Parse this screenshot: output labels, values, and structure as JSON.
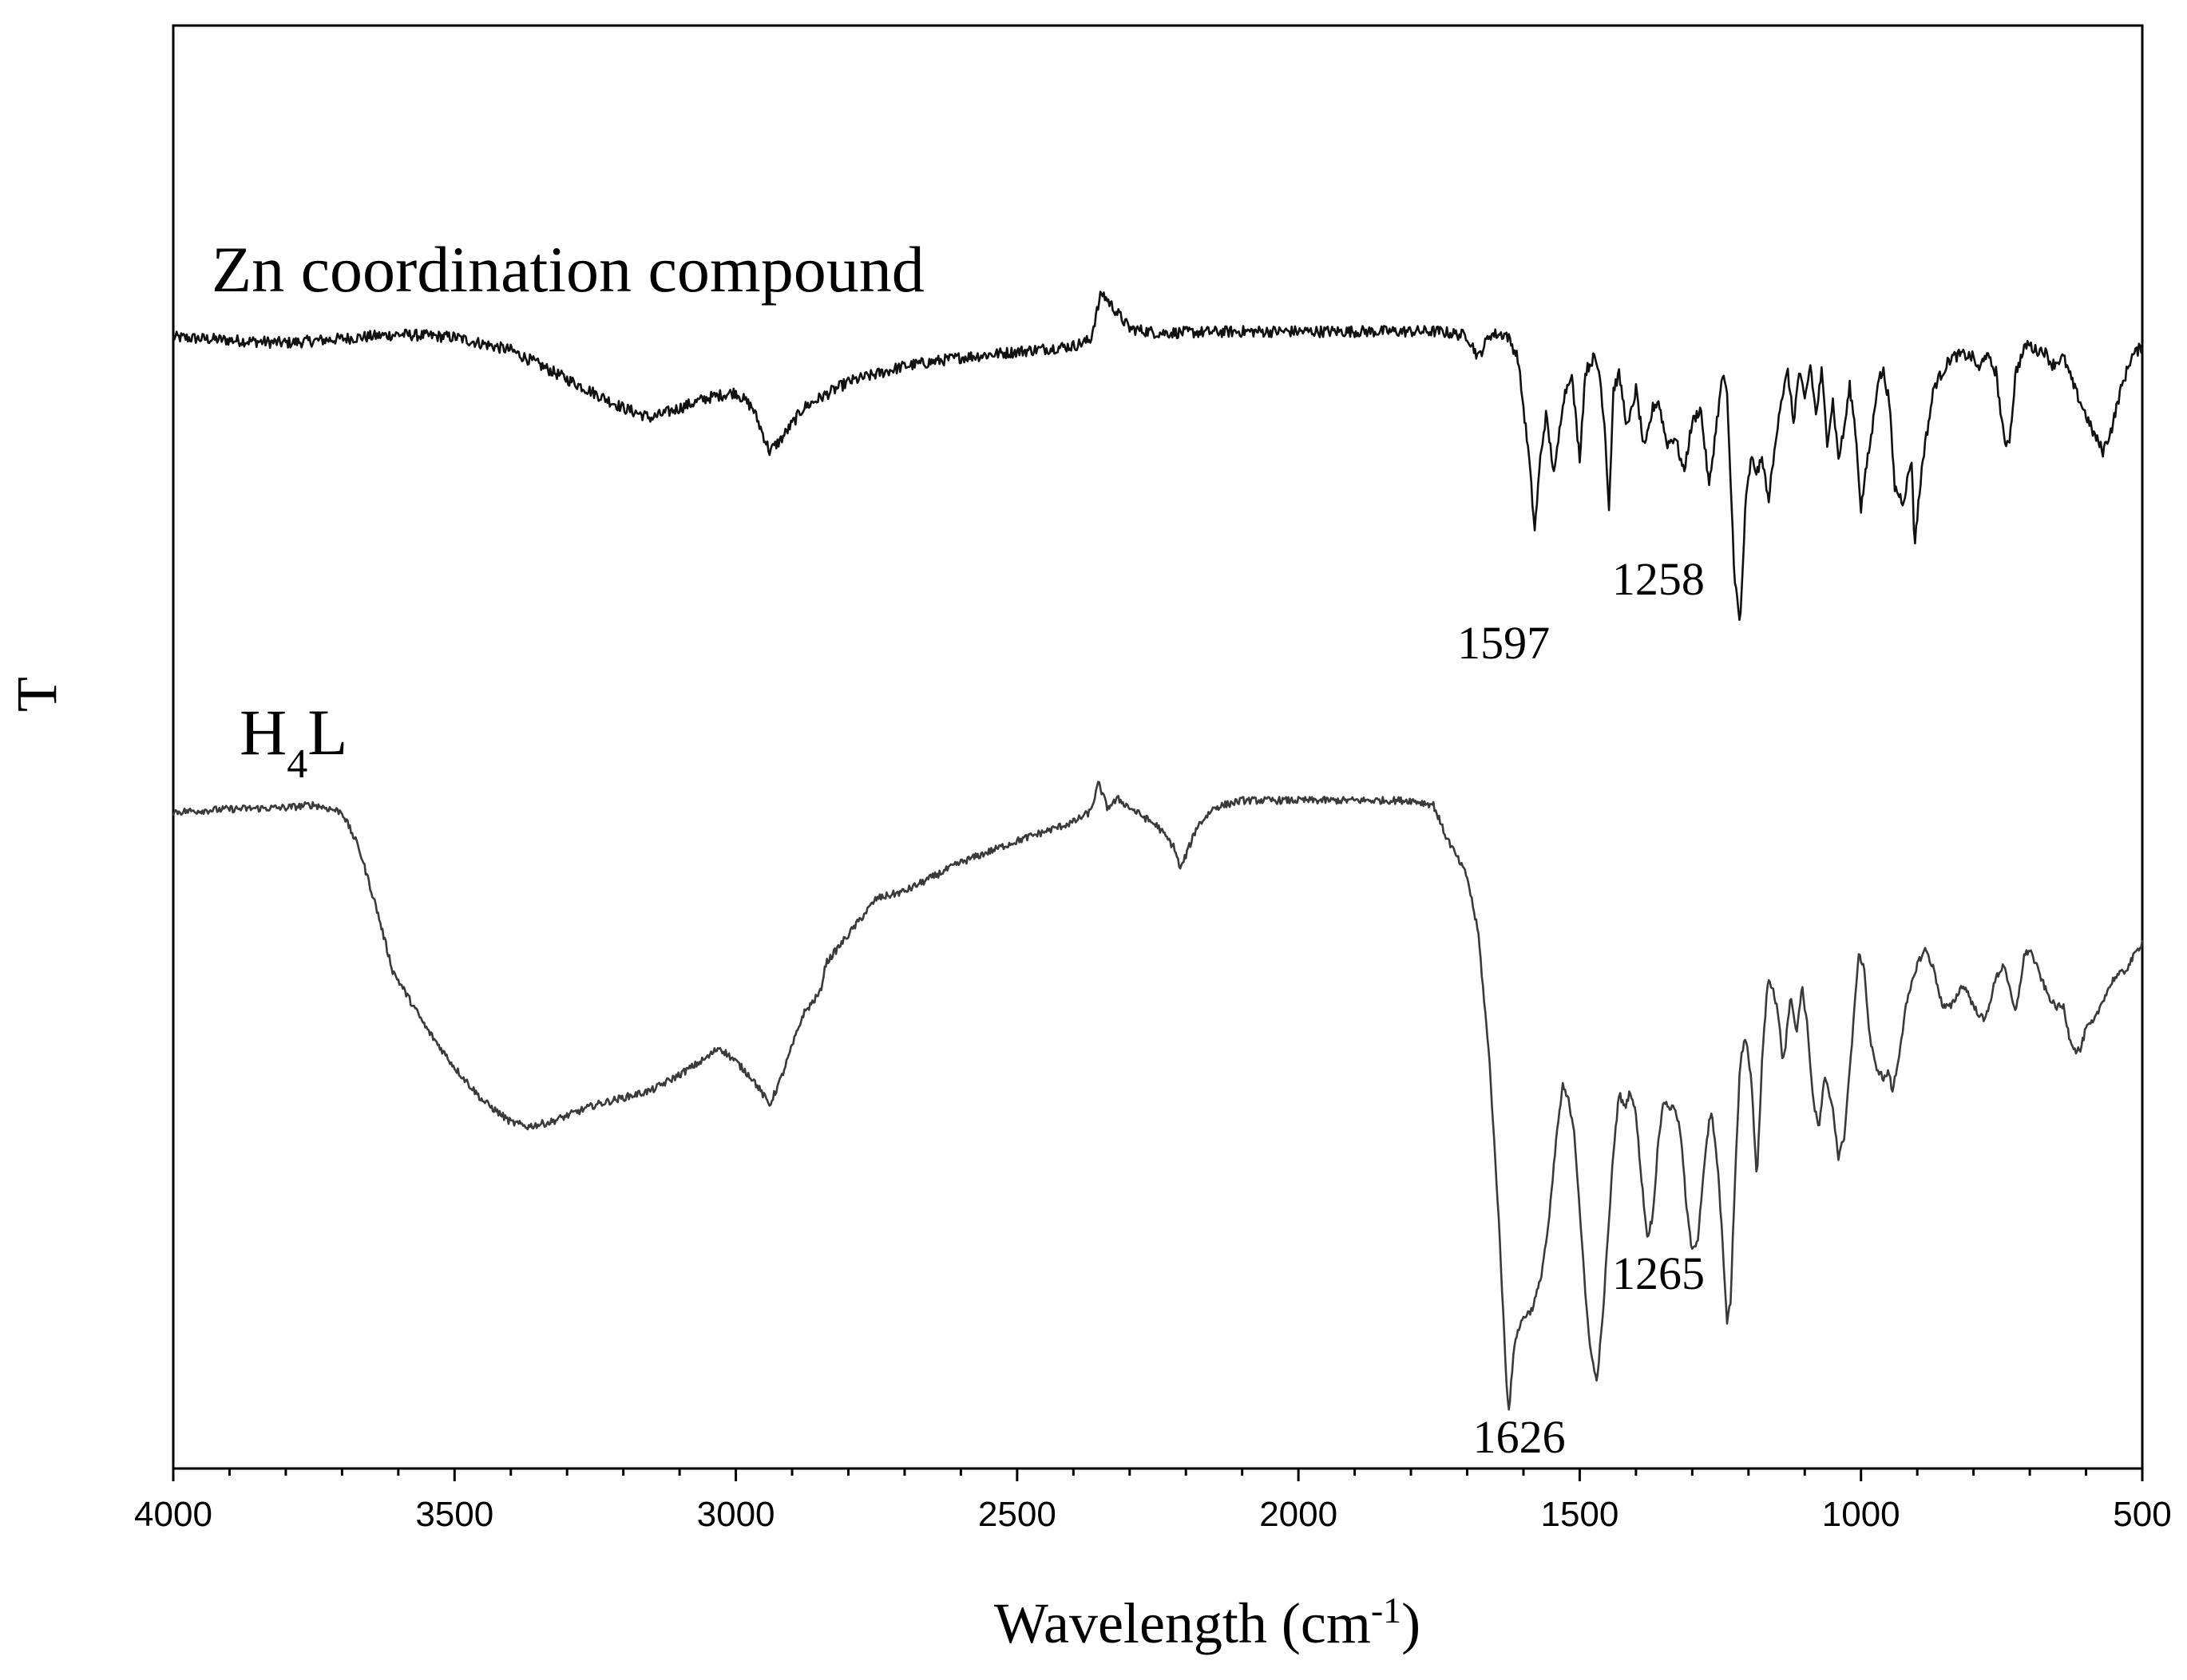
{
  "chart_data": {
    "type": "line",
    "title": "",
    "xlabel": "Wavelength (cm",
    "xlabel_sup": "-1",
    "xlabel_close": ")",
    "ylabel": "T",
    "xlim": [
      4000,
      500
    ],
    "x_reversed": true,
    "ylim": [
      0,
      1
    ],
    "y_ticks_shown": false,
    "grid": false,
    "xticks": [
      4000,
      3500,
      3000,
      2500,
      2000,
      1500,
      1000,
      500
    ],
    "xtick_labels": [
      "4000",
      "3500",
      "3000",
      "2500",
      "2000",
      "1500",
      "1000",
      "500"
    ],
    "series": [
      {
        "label_main": "Zn coordination compound",
        "label_sub": "",
        "label_tail": "",
        "color": "#111111",
        "noise": 0.004,
        "points": [
          [
            4000,
            0.784
          ],
          [
            3900,
            0.782
          ],
          [
            3800,
            0.78
          ],
          [
            3700,
            0.783
          ],
          [
            3600,
            0.786
          ],
          [
            3500,
            0.784
          ],
          [
            3400,
            0.775
          ],
          [
            3300,
            0.755
          ],
          [
            3200,
            0.735
          ],
          [
            3150,
            0.728
          ],
          [
            3100,
            0.735
          ],
          [
            3050,
            0.742
          ],
          [
            3000,
            0.746
          ],
          [
            2970,
            0.735
          ],
          [
            2940,
            0.705
          ],
          [
            2920,
            0.713
          ],
          [
            2880,
            0.735
          ],
          [
            2850,
            0.742
          ],
          [
            2800,
            0.753
          ],
          [
            2700,
            0.764
          ],
          [
            2600,
            0.77
          ],
          [
            2500,
            0.774
          ],
          [
            2400,
            0.778
          ],
          [
            2370,
            0.782
          ],
          [
            2350,
            0.815
          ],
          [
            2330,
            0.805
          ],
          [
            2300,
            0.79
          ],
          [
            2250,
            0.787
          ],
          [
            2100,
            0.788
          ],
          [
            2000,
            0.788
          ],
          [
            1900,
            0.788
          ],
          [
            1800,
            0.788
          ],
          [
            1750,
            0.788
          ],
          [
            1700,
            0.785
          ],
          [
            1680,
            0.77
          ],
          [
            1660,
            0.786
          ],
          [
            1630,
            0.786
          ],
          [
            1610,
            0.77
          ],
          [
            1590,
            0.7
          ],
          [
            1580,
            0.65
          ],
          [
            1570,
            0.7
          ],
          [
            1560,
            0.73
          ],
          [
            1545,
            0.688
          ],
          [
            1530,
            0.74
          ],
          [
            1515,
            0.76
          ],
          [
            1500,
            0.7
          ],
          [
            1490,
            0.76
          ],
          [
            1475,
            0.77
          ],
          [
            1465,
            0.76
          ],
          [
            1455,
            0.72
          ],
          [
            1448,
            0.665
          ],
          [
            1440,
            0.748
          ],
          [
            1430,
            0.758
          ],
          [
            1415,
            0.72
          ],
          [
            1400,
            0.748
          ],
          [
            1385,
            0.705
          ],
          [
            1370,
            0.735
          ],
          [
            1360,
            0.74
          ],
          [
            1345,
            0.71
          ],
          [
            1330,
            0.715
          ],
          [
            1315,
            0.69
          ],
          [
            1300,
            0.725
          ],
          [
            1285,
            0.735
          ],
          [
            1270,
            0.68
          ],
          [
            1255,
            0.73
          ],
          [
            1245,
            0.76
          ],
          [
            1238,
            0.742
          ],
          [
            1225,
            0.62
          ],
          [
            1215,
            0.583
          ],
          [
            1205,
            0.67
          ],
          [
            1195,
            0.7
          ],
          [
            1185,
            0.69
          ],
          [
            1175,
            0.7
          ],
          [
            1165,
            0.67
          ],
          [
            1155,
            0.7
          ],
          [
            1145,
            0.735
          ],
          [
            1130,
            0.76
          ],
          [
            1120,
            0.725
          ],
          [
            1110,
            0.76
          ],
          [
            1100,
            0.74
          ],
          [
            1090,
            0.765
          ],
          [
            1080,
            0.73
          ],
          [
            1070,
            0.76
          ],
          [
            1060,
            0.712
          ],
          [
            1050,
            0.74
          ],
          [
            1040,
            0.7
          ],
          [
            1030,
            0.72
          ],
          [
            1020,
            0.75
          ],
          [
            1010,
            0.72
          ],
          [
            1000,
            0.665
          ],
          [
            990,
            0.695
          ],
          [
            980,
            0.72
          ],
          [
            970,
            0.755
          ],
          [
            960,
            0.76
          ],
          [
            950,
            0.74
          ],
          [
            940,
            0.68
          ],
          [
            925,
            0.67
          ],
          [
            910,
            0.7
          ],
          [
            905,
            0.64
          ],
          [
            890,
            0.7
          ],
          [
            870,
            0.75
          ],
          [
            840,
            0.77
          ],
          [
            820,
            0.772
          ],
          [
            800,
            0.77
          ],
          [
            790,
            0.76
          ],
          [
            780,
            0.773
          ],
          [
            760,
            0.76
          ],
          [
            745,
            0.71
          ],
          [
            735,
            0.715
          ],
          [
            725,
            0.76
          ],
          [
            705,
            0.78
          ],
          [
            690,
            0.775
          ],
          [
            675,
            0.775
          ],
          [
            660,
            0.765
          ],
          [
            640,
            0.77
          ],
          [
            620,
            0.748
          ],
          [
            600,
            0.73
          ],
          [
            590,
            0.72
          ],
          [
            570,
            0.705
          ],
          [
            555,
            0.72
          ],
          [
            540,
            0.745
          ],
          [
            520,
            0.77
          ],
          [
            500,
            0.778
          ]
        ],
        "annotations": [
          {
            "text": "1597",
            "x": 1597
          },
          {
            "text": "1258",
            "x": 1258
          }
        ]
      },
      {
        "label_main": "H",
        "label_sub": "4",
        "label_tail": "L",
        "color": "#3a3a3a",
        "noise": 0.0025,
        "points": [
          [
            4000,
            0.455
          ],
          [
            3900,
            0.457
          ],
          [
            3800,
            0.458
          ],
          [
            3750,
            0.46
          ],
          [
            3700,
            0.455
          ],
          [
            3670,
            0.43
          ],
          [
            3640,
            0.39
          ],
          [
            3610,
            0.345
          ],
          [
            3580,
            0.325
          ],
          [
            3550,
            0.305
          ],
          [
            3500,
            0.278
          ],
          [
            3450,
            0.255
          ],
          [
            3400,
            0.24
          ],
          [
            3370,
            0.237
          ],
          [
            3330,
            0.24
          ],
          [
            3250,
            0.252
          ],
          [
            3150,
            0.262
          ],
          [
            3100,
            0.273
          ],
          [
            3050,
            0.285
          ],
          [
            3030,
            0.292
          ],
          [
            3000,
            0.282
          ],
          [
            2970,
            0.27
          ],
          [
            2940,
            0.252
          ],
          [
            2920,
            0.27
          ],
          [
            2880,
            0.315
          ],
          [
            2850,
            0.33
          ],
          [
            2840,
            0.35
          ],
          [
            2800,
            0.37
          ],
          [
            2750,
            0.395
          ],
          [
            2700,
            0.4
          ],
          [
            2600,
            0.42
          ],
          [
            2500,
            0.435
          ],
          [
            2400,
            0.448
          ],
          [
            2370,
            0.455
          ],
          [
            2355,
            0.475
          ],
          [
            2340,
            0.458
          ],
          [
            2320,
            0.464
          ],
          [
            2300,
            0.458
          ],
          [
            2250,
            0.445
          ],
          [
            2220,
            0.43
          ],
          [
            2210,
            0.415
          ],
          [
            2195,
            0.43
          ],
          [
            2180,
            0.445
          ],
          [
            2150,
            0.458
          ],
          [
            2100,
            0.463
          ],
          [
            2000,
            0.463
          ],
          [
            1900,
            0.463
          ],
          [
            1800,
            0.463
          ],
          [
            1760,
            0.46
          ],
          [
            1740,
            0.44
          ],
          [
            1720,
            0.425
          ],
          [
            1700,
            0.41
          ],
          [
            1680,
            0.37
          ],
          [
            1660,
            0.28
          ],
          [
            1645,
            0.18
          ],
          [
            1630,
            0.06
          ],
          [
            1626,
            0.04
          ],
          [
            1615,
            0.09
          ],
          [
            1600,
            0.105
          ],
          [
            1585,
            0.11
          ],
          [
            1570,
            0.13
          ],
          [
            1555,
            0.17
          ],
          [
            1540,
            0.235
          ],
          [
            1530,
            0.265
          ],
          [
            1520,
            0.255
          ],
          [
            1510,
            0.235
          ],
          [
            1500,
            0.18
          ],
          [
            1490,
            0.12
          ],
          [
            1480,
            0.08
          ],
          [
            1470,
            0.06
          ],
          [
            1460,
            0.1
          ],
          [
            1450,
            0.16
          ],
          [
            1440,
            0.22
          ],
          [
            1430,
            0.26
          ],
          [
            1420,
            0.25
          ],
          [
            1410,
            0.262
          ],
          [
            1400,
            0.245
          ],
          [
            1390,
            0.2
          ],
          [
            1380,
            0.16
          ],
          [
            1370,
            0.175
          ],
          [
            1360,
            0.23
          ],
          [
            1350,
            0.255
          ],
          [
            1340,
            0.25
          ],
          [
            1330,
            0.25
          ],
          [
            1320,
            0.23
          ],
          [
            1310,
            0.18
          ],
          [
            1300,
            0.15
          ],
          [
            1290,
            0.16
          ],
          [
            1280,
            0.205
          ],
          [
            1270,
            0.24
          ],
          [
            1265,
            0.245
          ],
          [
            1255,
            0.21
          ],
          [
            1245,
            0.15
          ],
          [
            1238,
            0.1
          ],
          [
            1232,
            0.115
          ],
          [
            1225,
            0.19
          ],
          [
            1215,
            0.28
          ],
          [
            1205,
            0.3
          ],
          [
            1195,
            0.27
          ],
          [
            1185,
            0.2
          ],
          [
            1175,
            0.29
          ],
          [
            1165,
            0.34
          ],
          [
            1155,
            0.33
          ],
          [
            1145,
            0.31
          ],
          [
            1140,
            0.285
          ],
          [
            1135,
            0.29
          ],
          [
            1125,
            0.33
          ],
          [
            1115,
            0.3
          ],
          [
            1105,
            0.335
          ],
          [
            1095,
            0.305
          ],
          [
            1085,
            0.255
          ],
          [
            1075,
            0.235
          ],
          [
            1065,
            0.27
          ],
          [
            1060,
            0.265
          ],
          [
            1050,
            0.25
          ],
          [
            1040,
            0.215
          ],
          [
            1030,
            0.23
          ],
          [
            1015,
            0.3
          ],
          [
            1005,
            0.355
          ],
          [
            995,
            0.35
          ],
          [
            985,
            0.3
          ],
          [
            975,
            0.28
          ],
          [
            960,
            0.27
          ],
          [
            950,
            0.275
          ],
          [
            945,
            0.26
          ],
          [
            935,
            0.28
          ],
          [
            920,
            0.32
          ],
          [
            900,
            0.35
          ],
          [
            885,
            0.36
          ],
          [
            870,
            0.345
          ],
          [
            855,
            0.32
          ],
          [
            840,
            0.32
          ],
          [
            820,
            0.335
          ],
          [
            810,
            0.33
          ],
          [
            800,
            0.32
          ],
          [
            780,
            0.31
          ],
          [
            760,
            0.34
          ],
          [
            745,
            0.35
          ],
          [
            735,
            0.33
          ],
          [
            725,
            0.315
          ],
          [
            710,
            0.355
          ],
          [
            700,
            0.36
          ],
          [
            690,
            0.35
          ],
          [
            670,
            0.33
          ],
          [
            655,
            0.32
          ],
          [
            640,
            0.32
          ],
          [
            630,
            0.3
          ],
          [
            620,
            0.29
          ],
          [
            610,
            0.29
          ],
          [
            600,
            0.305
          ],
          [
            585,
            0.31
          ],
          [
            570,
            0.325
          ],
          [
            550,
            0.34
          ],
          [
            530,
            0.345
          ],
          [
            515,
            0.355
          ],
          [
            500,
            0.365
          ]
        ],
        "annotations": [
          {
            "text": "1626",
            "x": 1626
          },
          {
            "text": "1265",
            "x": 1265
          }
        ]
      }
    ]
  }
}
